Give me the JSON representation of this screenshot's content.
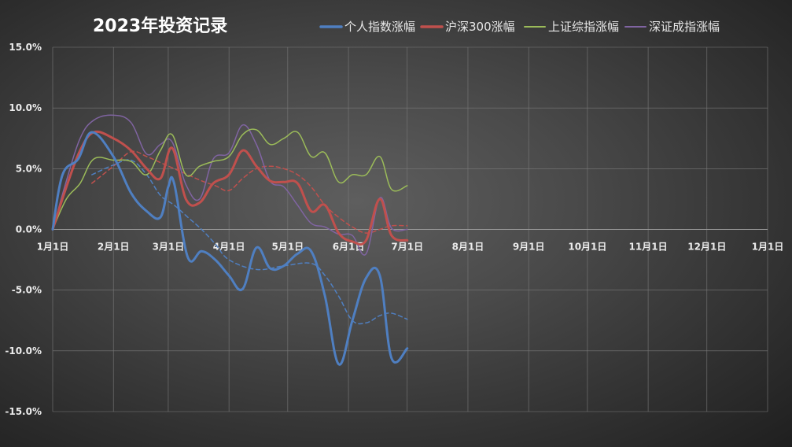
{
  "chart_data": {
    "type": "line",
    "title": "2023年投资记录",
    "xlabel": "",
    "ylabel": "",
    "x_ticks": [
      "1月1日",
      "2月1日",
      "3月1日",
      "4月1日",
      "5月1日",
      "6月1日",
      "7月1日",
      "8月1日",
      "9月1日",
      "10月1日",
      "11月1日",
      "12月1日",
      "1月1日"
    ],
    "y_ticks": [
      "15.0%",
      "10.0%",
      "5.0%",
      "0.0%",
      "-5.0%",
      "-10.0%",
      "-15.0%"
    ],
    "ylim": [
      -15,
      15
    ],
    "y_unit": "%",
    "grid": true,
    "legend_position": "top",
    "series": [
      {
        "name": "个人指数涨幅",
        "color": "#4f7fc1",
        "width": 3,
        "x": [
          "2023-01-01",
          "2023-01-06",
          "2023-01-14",
          "2023-01-21",
          "2023-02-01",
          "2023-02-10",
          "2023-02-18",
          "2023-02-25",
          "2023-03-01",
          "2023-03-04",
          "2023-03-11",
          "2023-03-18",
          "2023-03-25",
          "2023-04-01",
          "2023-04-08",
          "2023-04-15",
          "2023-04-22",
          "2023-04-29",
          "2023-05-06",
          "2023-05-13",
          "2023-05-20",
          "2023-05-27",
          "2023-06-03",
          "2023-06-10",
          "2023-06-17",
          "2023-06-23",
          "2023-07-01"
        ],
        "y": [
          0,
          4.5,
          5.8,
          8.0,
          6.0,
          3.0,
          1.5,
          1.0,
          3.5,
          3.8,
          -2.3,
          -1.8,
          -2.5,
          -3.8,
          -4.9,
          -1.5,
          -3.2,
          -3.0,
          -2.0,
          -1.8,
          -5.5,
          -11.1,
          -7.5,
          -4.0,
          -3.8,
          -10.6,
          -9.8
        ]
      },
      {
        "name": "沪深300涨幅",
        "color": "#c0504d",
        "width": 3,
        "x": [
          "2023-01-01",
          "2023-01-08",
          "2023-01-15",
          "2023-01-22",
          "2023-02-01",
          "2023-02-10",
          "2023-02-18",
          "2023-02-25",
          "2023-03-03",
          "2023-03-10",
          "2023-03-17",
          "2023-03-24",
          "2023-04-01",
          "2023-04-08",
          "2023-04-15",
          "2023-04-22",
          "2023-04-29",
          "2023-05-06",
          "2023-05-13",
          "2023-05-20",
          "2023-05-27",
          "2023-06-03",
          "2023-06-10",
          "2023-06-17",
          "2023-06-23",
          "2023-07-01"
        ],
        "y": [
          0,
          3.5,
          6.5,
          8.0,
          7.5,
          6.5,
          5.0,
          4.2,
          6.7,
          2.5,
          2.2,
          3.8,
          4.5,
          6.5,
          5.2,
          4.0,
          3.9,
          3.8,
          1.5,
          2.0,
          -0.3,
          -1.0,
          -0.9,
          2.5,
          -0.5,
          -0.9
        ]
      },
      {
        "name": "上证综指涨幅",
        "color": "#9bbb59",
        "width": 1.5,
        "x": [
          "2023-01-01",
          "2023-01-08",
          "2023-01-15",
          "2023-01-22",
          "2023-02-01",
          "2023-02-10",
          "2023-02-18",
          "2023-02-25",
          "2023-03-03",
          "2023-03-10",
          "2023-03-17",
          "2023-03-24",
          "2023-04-01",
          "2023-04-08",
          "2023-04-15",
          "2023-04-22",
          "2023-04-29",
          "2023-05-06",
          "2023-05-13",
          "2023-05-20",
          "2023-05-27",
          "2023-06-03",
          "2023-06-10",
          "2023-06-17",
          "2023-06-23",
          "2023-07-01"
        ],
        "y": [
          0,
          2.5,
          3.8,
          5.8,
          5.7,
          5.6,
          4.5,
          6.5,
          7.8,
          4.5,
          5.2,
          5.6,
          6.0,
          7.8,
          8.2,
          7.0,
          7.5,
          8.0,
          6.0,
          6.3,
          3.9,
          4.5,
          4.5,
          6.0,
          3.3,
          3.6
        ]
      },
      {
        "name": "深证成指涨幅",
        "color": "#8064a2",
        "width": 1.5,
        "x": [
          "2023-01-01",
          "2023-01-08",
          "2023-01-15",
          "2023-01-22",
          "2023-02-01",
          "2023-02-10",
          "2023-02-18",
          "2023-02-25",
          "2023-03-03",
          "2023-03-10",
          "2023-03-17",
          "2023-03-24",
          "2023-04-01",
          "2023-04-08",
          "2023-04-15",
          "2023-04-22",
          "2023-04-29",
          "2023-05-06",
          "2023-05-13",
          "2023-05-20",
          "2023-05-27",
          "2023-06-03",
          "2023-06-10",
          "2023-06-17",
          "2023-06-23",
          "2023-07-01"
        ],
        "y": [
          0,
          4.0,
          7.5,
          9.0,
          9.4,
          8.8,
          6.2,
          7.0,
          7.2,
          3.7,
          2.5,
          5.8,
          6.3,
          8.6,
          7.0,
          4.0,
          3.5,
          2.0,
          0.5,
          0.2,
          -0.4,
          -0.5,
          -2.0,
          2.6,
          0.1,
          0.0
        ]
      },
      {
        "name": "",
        "color": "#4f7fc1",
        "width": 1.5,
        "dashed": true,
        "x": [
          "2023-01-21",
          "2023-02-01",
          "2023-02-10",
          "2023-02-18",
          "2023-02-25",
          "2023-03-04",
          "2023-03-11",
          "2023-03-18",
          "2023-03-25",
          "2023-04-01",
          "2023-04-15",
          "2023-04-29",
          "2023-05-13",
          "2023-05-20",
          "2023-05-27",
          "2023-06-03",
          "2023-06-10",
          "2023-06-17",
          "2023-06-23",
          "2023-07-01"
        ],
        "y": [
          4.5,
          5.3,
          5.7,
          4.5,
          2.8,
          2.0,
          1.0,
          0,
          -1.2,
          -2.5,
          -3.3,
          -3.0,
          -2.8,
          -3.8,
          -5.5,
          -7.5,
          -7.7,
          -7.1,
          -6.9,
          -7.4
        ]
      },
      {
        "name": "",
        "color": "#c0504d",
        "width": 1.5,
        "dashed": true,
        "x": [
          "2023-01-21",
          "2023-02-01",
          "2023-02-10",
          "2023-02-18",
          "2023-02-25",
          "2023-03-04",
          "2023-03-11",
          "2023-03-18",
          "2023-03-25",
          "2023-04-01",
          "2023-04-08",
          "2023-04-15",
          "2023-04-22",
          "2023-04-29",
          "2023-05-06",
          "2023-05-13",
          "2023-05-20",
          "2023-05-27",
          "2023-06-03",
          "2023-06-10",
          "2023-06-17",
          "2023-06-23",
          "2023-07-01"
        ],
        "y": [
          3.8,
          5.2,
          6.4,
          6.0,
          5.5,
          5.0,
          4.5,
          4.0,
          3.6,
          3.2,
          4.2,
          5.0,
          5.2,
          5.0,
          4.5,
          3.5,
          2.0,
          1.0,
          0.2,
          -0.3,
          0.0,
          0.3,
          0.3
        ]
      }
    ]
  }
}
